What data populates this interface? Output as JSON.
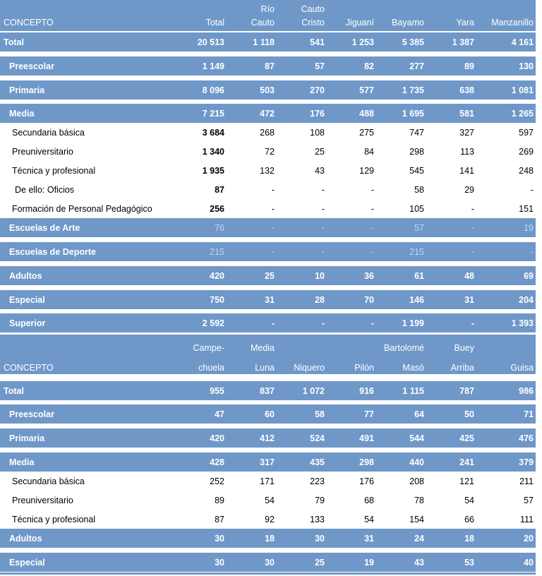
{
  "t1": {
    "head": {
      "concepto": "CONCEPTO",
      "cols": [
        {
          "l1": "",
          "l2": "Total"
        },
        {
          "l1": "Río",
          "l2": "Cauto"
        },
        {
          "l1": "Cauto",
          "l2": "Cristo"
        },
        {
          "l1": "",
          "l2": "Jiguaní"
        },
        {
          "l1": "",
          "l2": "Bayamo"
        },
        {
          "l1": "",
          "l2": "Yara"
        },
        {
          "l1": "",
          "l2": "Manzanillo"
        }
      ]
    },
    "rows": [
      {
        "label": "Total",
        "v": [
          "20 513",
          "1 118",
          "541",
          "1 253",
          "5 385",
          "1 387",
          "4 161"
        ]
      },
      {
        "label": "Preescolar",
        "v": [
          "1 149",
          "87",
          "57",
          "82",
          "277",
          "89",
          "130"
        ]
      },
      {
        "label": "Primaria",
        "v": [
          "8 096",
          "503",
          "270",
          "577",
          "1 735",
          "638",
          "1 081"
        ]
      },
      {
        "label": "Media",
        "v": [
          "7 215",
          "472",
          "176",
          "488",
          "1 695",
          "581",
          "1 265"
        ]
      },
      {
        "label": "Secundaria básica",
        "v": [
          "3 684",
          "268",
          "108",
          "275",
          "747",
          "327",
          "597"
        ]
      },
      {
        "label": "Preuniversitario",
        "v": [
          "1 340",
          "72",
          "25",
          "84",
          "298",
          "113",
          "269"
        ]
      },
      {
        "label": "Técnica y profesional",
        "v": [
          "1 935",
          "132",
          "43",
          "129",
          "545",
          "141",
          "248"
        ]
      },
      {
        "label": "De ello: Oficios",
        "v": [
          "87",
          "-",
          "-",
          "-",
          "58",
          "29",
          "-"
        ]
      },
      {
        "label": "Formación de Personal Pedagógico",
        "v": [
          "256",
          "-",
          "-",
          "-",
          "105",
          "-",
          "151"
        ]
      },
      {
        "label": "Escuelas de Arte",
        "v": [
          "76",
          "-",
          "-",
          "-",
          "57",
          "-",
          "19"
        ]
      },
      {
        "label": "Escuelas de Deporte",
        "v": [
          "215",
          "-",
          "-",
          "-",
          "215",
          "-",
          "-"
        ]
      },
      {
        "label": "Adultos",
        "v": [
          "420",
          "25",
          "10",
          "36",
          "61",
          "48",
          "69"
        ]
      },
      {
        "label": "Especial",
        "v": [
          "750",
          "31",
          "28",
          "70",
          "146",
          "31",
          "204"
        ]
      },
      {
        "label": "Superior",
        "v": [
          "2 592",
          "-",
          "-",
          "-",
          "1 199",
          "-",
          "1 393"
        ]
      }
    ]
  },
  "t2": {
    "head": {
      "concepto": "CONCEPTO",
      "cols": [
        {
          "l1": "Campe-",
          "l2": "chuela"
        },
        {
          "l1": "Media",
          "l2": "Luna"
        },
        {
          "l1": "",
          "l2": "Niquero"
        },
        {
          "l1": "",
          "l2": "Pilón"
        },
        {
          "l1": "Bartolomé",
          "l2": "Masó"
        },
        {
          "l1": "Buey",
          "l2": "Arriba"
        },
        {
          "l1": "",
          "l2": "Guisa"
        }
      ]
    },
    "rows": [
      {
        "label": "Total",
        "v": [
          "955",
          "837",
          "1 072",
          "916",
          "1 115",
          "787",
          "986"
        ]
      },
      {
        "label": "Preescolar",
        "v": [
          "47",
          "60",
          "58",
          "77",
          "64",
          "50",
          "71"
        ]
      },
      {
        "label": "Primaria",
        "v": [
          "420",
          "412",
          "524",
          "491",
          "544",
          "425",
          "476"
        ]
      },
      {
        "label": "Media",
        "v": [
          "428",
          "317",
          "435",
          "298",
          "440",
          "241",
          "379"
        ]
      },
      {
        "label": "Secundaria básica",
        "v": [
          "252",
          "171",
          "223",
          "176",
          "208",
          "121",
          "211"
        ]
      },
      {
        "label": "Preuniversitario",
        "v": [
          "89",
          "54",
          "79",
          "68",
          "78",
          "54",
          "57"
        ]
      },
      {
        "label": "Técnica y profesional",
        "v": [
          "87",
          "92",
          "133",
          "54",
          "154",
          "66",
          "111"
        ]
      },
      {
        "label": "Adultos",
        "v": [
          "30",
          "18",
          "30",
          "31",
          "24",
          "18",
          "20"
        ]
      },
      {
        "label": "Especial",
        "v": [
          "30",
          "30",
          "25",
          "19",
          "43",
          "53",
          "40"
        ]
      }
    ]
  }
}
